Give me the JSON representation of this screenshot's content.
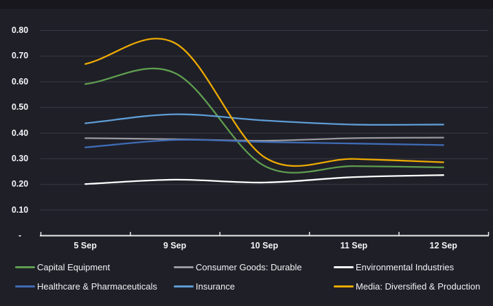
{
  "window": {
    "background_color": "#1f1f28",
    "top_strip_color": "#17171d",
    "grid_color": "#3b3b45",
    "axis_color": "#ececee",
    "label_color": "#f5f5f7"
  },
  "chart_data": {
    "type": "line",
    "smooth": true,
    "title": "",
    "xlabel": "",
    "ylabel": "",
    "categories": [
      "5 Sep",
      "9 Sep",
      "10 Sep",
      "11 Sep",
      "12 Sep"
    ],
    "series": [
      {
        "name": "Capital Equipment",
        "color": "#5f9e4f",
        "values": [
          0.59,
          0.633,
          0.271,
          0.27,
          0.265
        ]
      },
      {
        "name": "Consumer Goods: Durable",
        "color": "#9a9aa0",
        "values": [
          0.379,
          0.375,
          0.369,
          0.379,
          0.381
        ]
      },
      {
        "name": "Environmental Industries",
        "color": "#ffffff",
        "values": [
          0.2,
          0.217,
          0.206,
          0.227,
          0.235
        ]
      },
      {
        "name": "Healthcare & Pharmaceuticals",
        "color": "#3f6cb5",
        "values": [
          0.343,
          0.372,
          0.364,
          0.358,
          0.352
        ]
      },
      {
        "name": "Insurance",
        "color": "#5e9ed6",
        "values": [
          0.437,
          0.472,
          0.448,
          0.432,
          0.432
        ]
      },
      {
        "name": "Media: Diversified & Production",
        "color": "#edaa00",
        "values": [
          0.668,
          0.75,
          0.305,
          0.298,
          0.285
        ]
      }
    ],
    "ylim": [
      0,
      0.8
    ],
    "y_ticks": [
      0,
      0.1,
      0.2,
      0.3,
      0.4,
      0.5,
      0.6,
      0.7,
      0.8
    ],
    "y_tick_labels": [
      "-",
      "0.10",
      "0.20",
      "0.30",
      "0.40",
      "0.50",
      "0.60",
      "0.70",
      "0.80"
    ],
    "grid": true,
    "legend_position": "bottom"
  }
}
